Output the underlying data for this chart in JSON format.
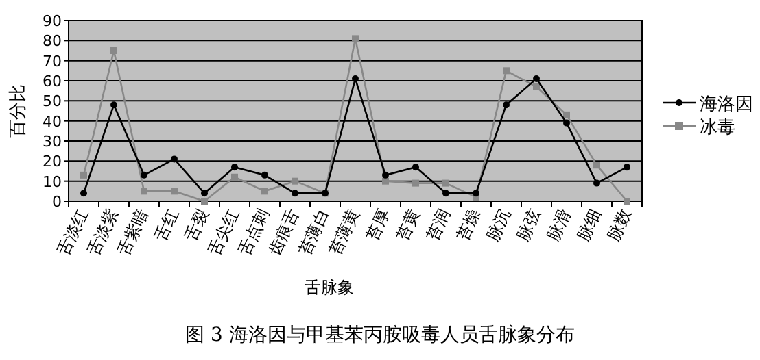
{
  "chart_data": {
    "type": "line",
    "title": "图 3 海洛因与甲基苯丙胺吸毒人员舌脉象分布",
    "xlabel": "舌脉象",
    "ylabel": "百分比",
    "categories": [
      "舌淡红",
      "舌淡紫",
      "舌紫暗",
      "舌红",
      "舌裂",
      "舌尖红",
      "舌点刺",
      "齿痕舌",
      "苔薄白",
      "苔薄黄",
      "苔厚",
      "苔黄",
      "苔润",
      "苔燥",
      "脉沉",
      "脉弦",
      "脉滑",
      "脉细",
      "脉数"
    ],
    "series": [
      {
        "name": "海洛因",
        "color": "#000000",
        "marker": "circle",
        "values": [
          4,
          48,
          13,
          21,
          4,
          17,
          13,
          4,
          4,
          61,
          13,
          17,
          4,
          4,
          48,
          61,
          39,
          9,
          17
        ]
      },
      {
        "name": "冰毒",
        "color": "#888888",
        "marker": "square",
        "values": [
          13,
          75,
          5,
          5,
          0,
          12,
          5,
          10,
          4,
          81,
          10,
          9,
          9,
          2,
          65,
          57,
          43,
          18,
          0
        ]
      }
    ],
    "ylim": [
      0,
      90
    ],
    "yticks": [
      0,
      10,
      20,
      30,
      40,
      50,
      60,
      70,
      80,
      90
    ],
    "grid": "y",
    "legend": "right"
  }
}
